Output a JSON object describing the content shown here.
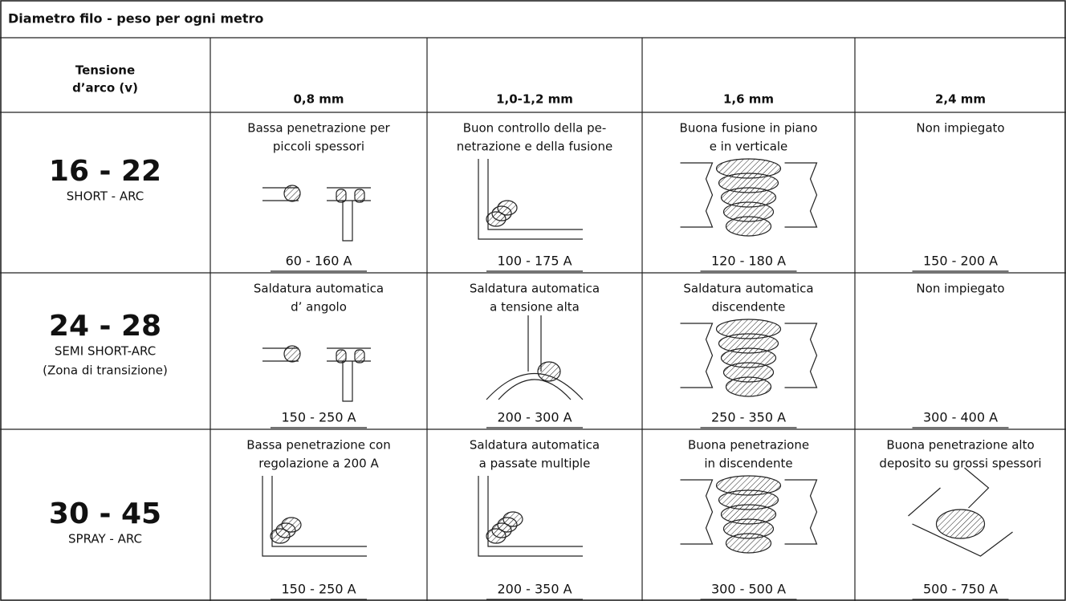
{
  "table": {
    "title": "Diametro filo - peso per ogni metro",
    "header": {
      "label": [
        "Tensione",
        "d’arco (v)"
      ],
      "columns": [
        "0,8 mm",
        "1,0-1,2 mm",
        "1,6 mm",
        "2,4 mm"
      ]
    },
    "rows": [
      {
        "voltage": "16 - 22",
        "mode": [
          "SHORT - ARC"
        ],
        "cells": [
          {
            "description": [
              "Bassa penetrazione per",
              "piccoli spessori"
            ],
            "current": "60 - 160 A"
          },
          {
            "description": [
              "Buon controllo della pe-",
              "netrazione e della fusione"
            ],
            "current": "100 - 175 A"
          },
          {
            "description": [
              "Buona fusione in piano",
              "e in verticale"
            ],
            "current": "120 - 180 A"
          },
          {
            "description": [
              "Non impiegato"
            ],
            "current": "150 - 200 A"
          }
        ]
      },
      {
        "voltage": "24 - 28",
        "mode": [
          "SEMI SHORT-ARC",
          "(Zona di transizione)"
        ],
        "cells": [
          {
            "description": [
              "Saldatura automatica",
              "d’ angolo"
            ],
            "current": "150 - 250 A"
          },
          {
            "description": [
              "Saldatura automatica",
              "a tensione alta"
            ],
            "current": "200 - 300 A"
          },
          {
            "description": [
              "Saldatura automatica",
              "discendente"
            ],
            "current": "250 - 350 A"
          },
          {
            "description": [
              "Non impiegato"
            ],
            "current": "300 - 400 A"
          }
        ]
      },
      {
        "voltage": "30 - 45",
        "mode": [
          "SPRAY - ARC"
        ],
        "cells": [
          {
            "description": [
              "Bassa penetrazione con",
              "regolazione a 200 A"
            ],
            "current": "150 - 250 A"
          },
          {
            "description": [
              "Saldatura automatica",
              "a passate multiple"
            ],
            "current": "200 - 350 A"
          },
          {
            "description": [
              "Buona penetrazione",
              "in discendente"
            ],
            "current": "300 - 500 A"
          },
          {
            "description": [
              "Buona penetrazione alto",
              "deposito su grossi spessori"
            ],
            "current": "500 - 750 A"
          }
        ]
      }
    ]
  }
}
